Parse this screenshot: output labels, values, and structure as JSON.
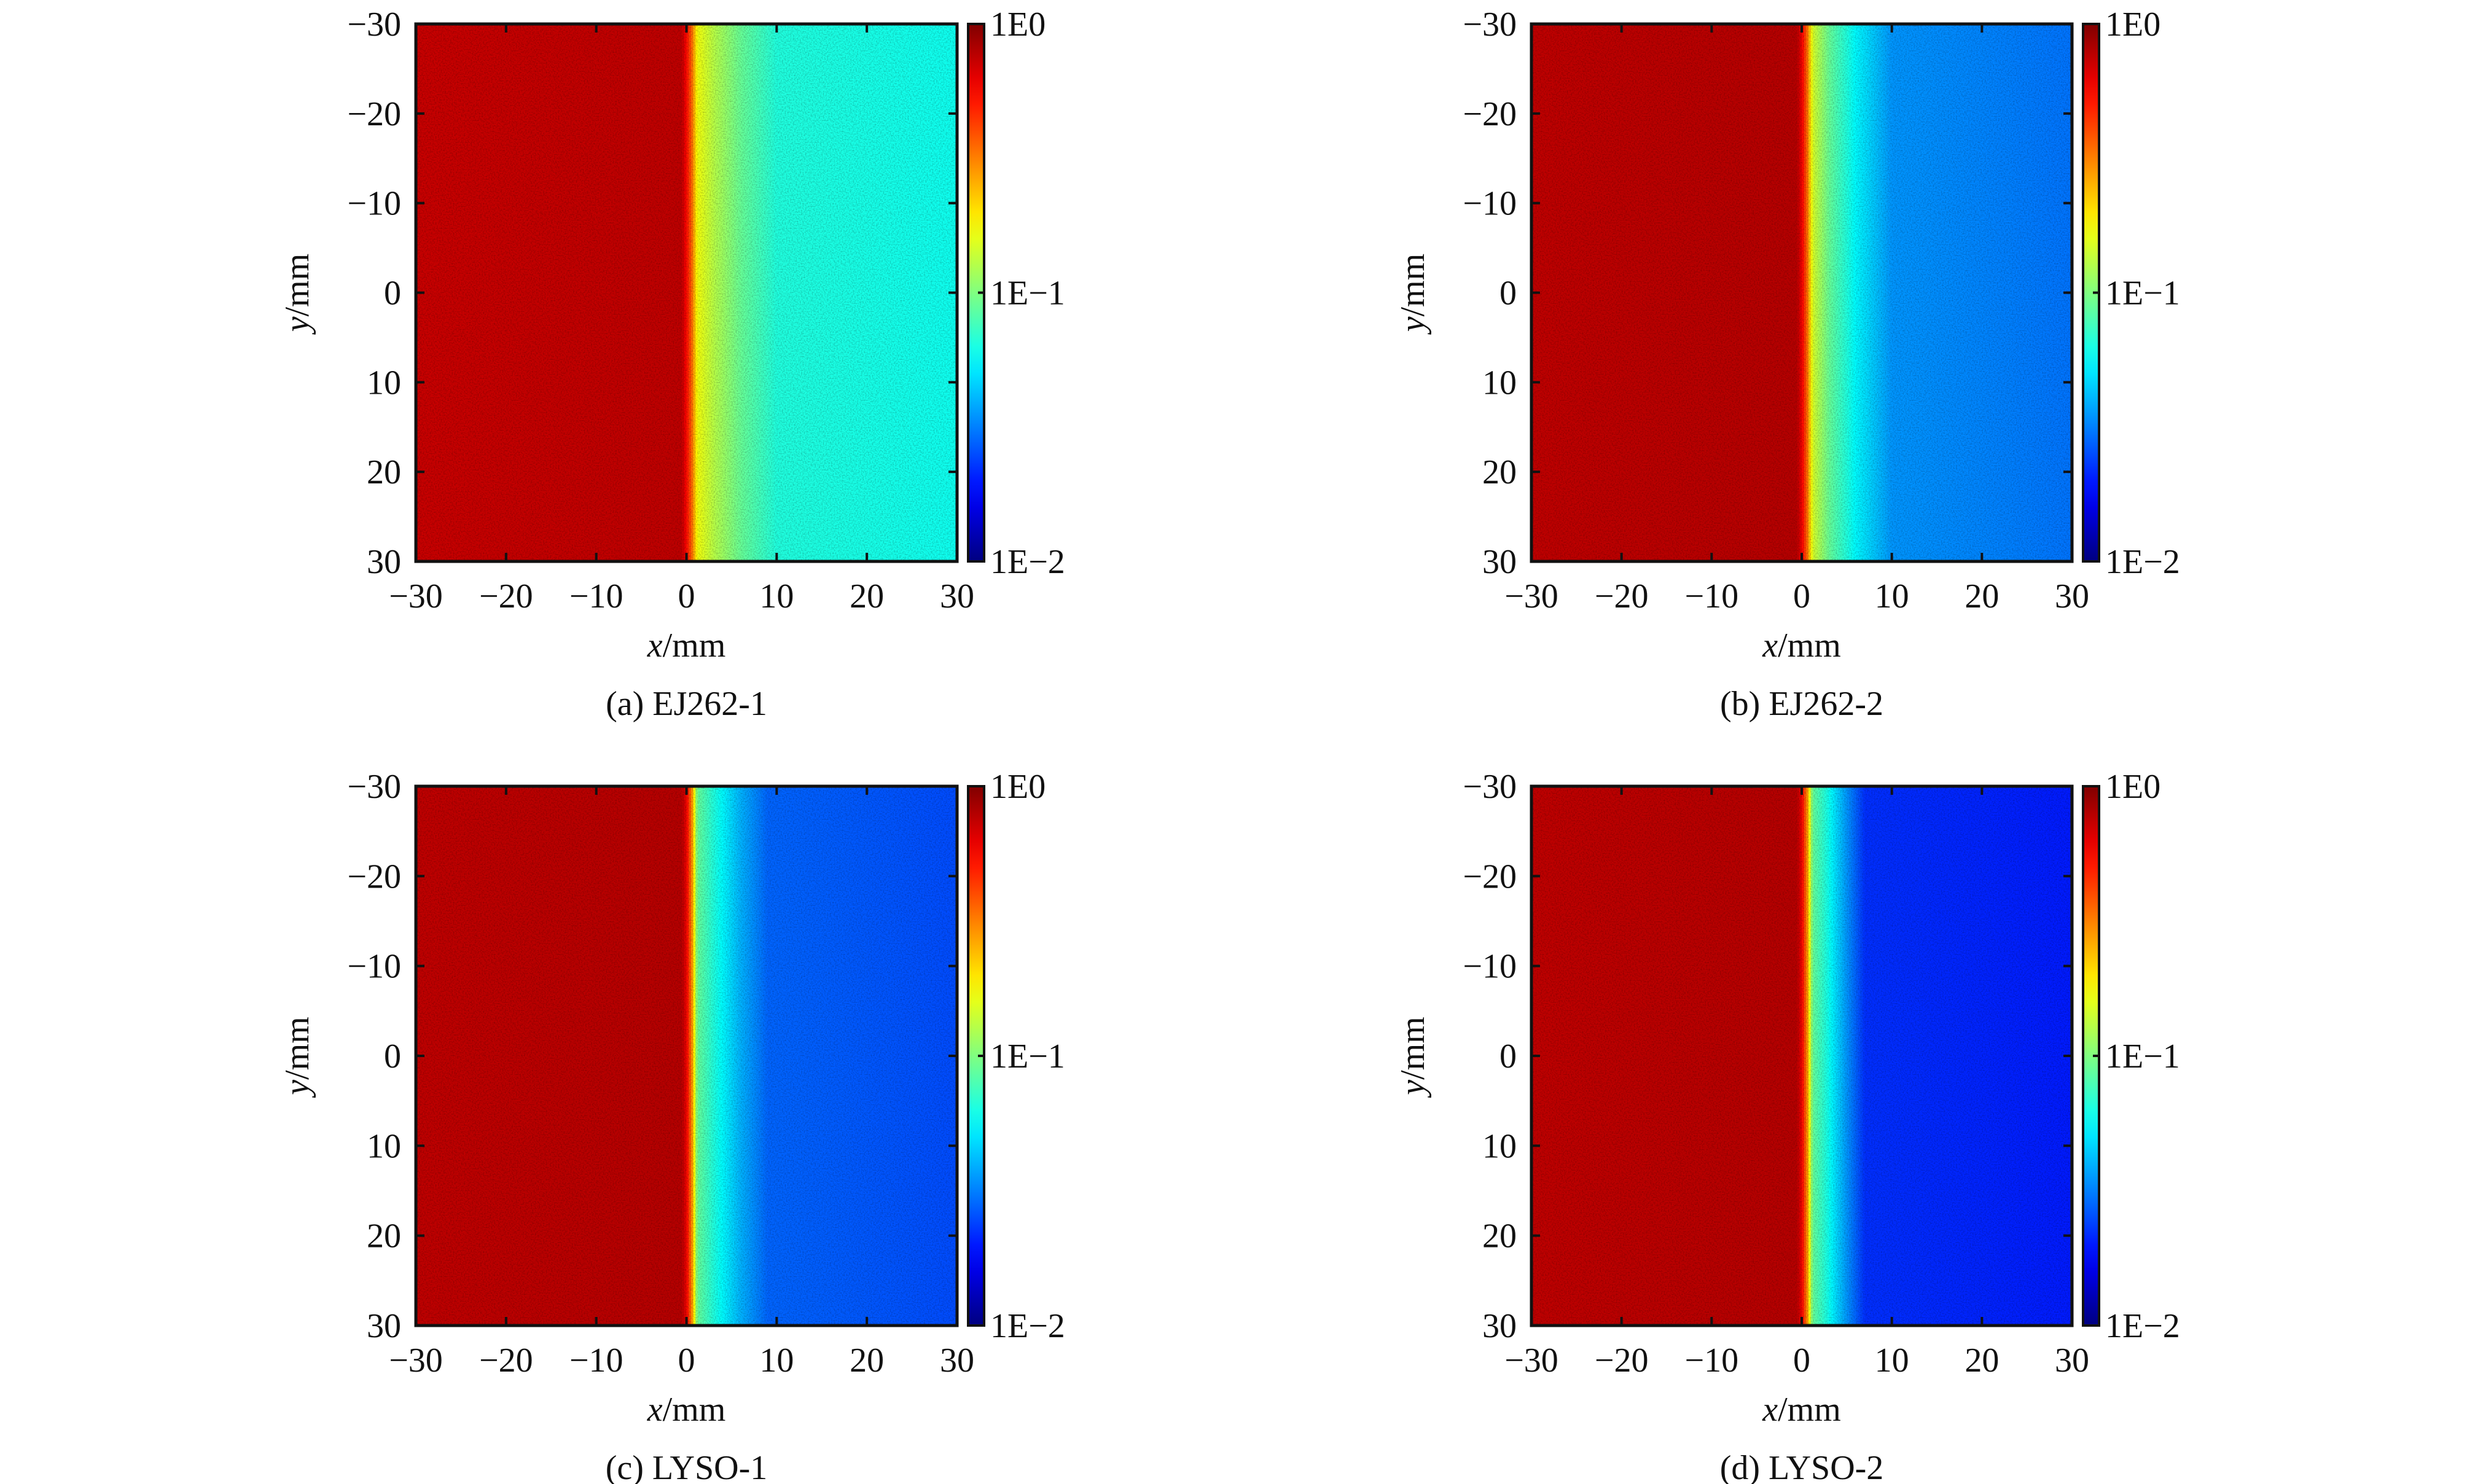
{
  "chart_data": [
    {
      "type": "heatmap",
      "caption": "(a) EJ262-1",
      "xlabel_var": "x",
      "xlabel_unit": "/mm",
      "ylabel_var": "y",
      "ylabel_unit": "/mm",
      "xlim": [
        -30,
        30
      ],
      "ylim": [
        -30,
        30
      ],
      "xticks": [
        "−30",
        "−20",
        "−10",
        "0",
        "10",
        "20",
        "30"
      ],
      "yticks": [
        "−30",
        "−20",
        "−10",
        "0",
        "10",
        "20",
        "30"
      ],
      "colorbar": {
        "scale": "log",
        "range": [
          0.01,
          1
        ],
        "ticks": [
          "1E0",
          "1E−1",
          "1E−2"
        ]
      },
      "profile": {
        "x": [
          -30,
          -0.5,
          0,
          0.6,
          1.2,
          3,
          6,
          10,
          30
        ],
        "value": [
          0.72,
          0.75,
          0.55,
          0.35,
          0.17,
          0.13,
          0.09,
          0.065,
          0.06
        ]
      }
    },
    {
      "type": "heatmap",
      "caption": "(b) EJ262-2",
      "xlabel_var": "x",
      "xlabel_unit": "/mm",
      "ylabel_var": "y",
      "ylabel_unit": "/mm",
      "xlim": [
        -30,
        30
      ],
      "ylim": [
        -30,
        30
      ],
      "xticks": [
        "−30",
        "−20",
        "−10",
        "0",
        "10",
        "20",
        "30"
      ],
      "yticks": [
        "−30",
        "−20",
        "−10",
        "0",
        "10",
        "20",
        "30"
      ],
      "colorbar": {
        "scale": "log",
        "range": [
          0.01,
          1
        ],
        "ticks": [
          "1E0",
          "1E−1",
          "1E−2"
        ]
      },
      "profile": {
        "x": [
          -30,
          -0.5,
          0,
          0.6,
          1.2,
          3,
          6,
          10,
          30
        ],
        "value": [
          0.75,
          0.78,
          0.6,
          0.35,
          0.15,
          0.09,
          0.055,
          0.035,
          0.03
        ]
      }
    },
    {
      "type": "heatmap",
      "caption": "(c) LYSO-1",
      "xlabel_var": "x",
      "xlabel_unit": "/mm",
      "ylabel_var": "y",
      "ylabel_unit": "/mm",
      "xlim": [
        -30,
        30
      ],
      "ylim": [
        -30,
        30
      ],
      "xticks": [
        "−30",
        "−20",
        "−10",
        "0",
        "10",
        "20",
        "30"
      ],
      "yticks": [
        "−30",
        "−20",
        "−10",
        "0",
        "10",
        "20",
        "30"
      ],
      "colorbar": {
        "scale": "log",
        "range": [
          0.01,
          1
        ],
        "ticks": [
          "1E0",
          "1E−1",
          "1E−2"
        ]
      },
      "profile": {
        "x": [
          -30,
          -0.5,
          0,
          0.6,
          1.2,
          3,
          6,
          9,
          30
        ],
        "value": [
          0.75,
          0.78,
          0.6,
          0.3,
          0.09,
          0.065,
          0.04,
          0.028,
          0.025
        ]
      }
    },
    {
      "type": "heatmap",
      "caption": "(d) LYSO-2",
      "xlabel_var": "x",
      "xlabel_unit": "/mm",
      "ylabel_var": "y",
      "ylabel_unit": "/mm",
      "xlim": [
        -30,
        30
      ],
      "ylim": [
        -30,
        30
      ],
      "xticks": [
        "−30",
        "−20",
        "−10",
        "0",
        "10",
        "20",
        "30"
      ],
      "yticks": [
        "−30",
        "−20",
        "−10",
        "0",
        "10",
        "20",
        "30"
      ],
      "colorbar": {
        "scale": "log",
        "range": [
          0.01,
          1
        ],
        "ticks": [
          "1E0",
          "1E−1",
          "1E−2"
        ]
      },
      "profile": {
        "x": [
          -30,
          -0.5,
          0,
          0.6,
          1.2,
          3,
          5,
          7,
          30
        ],
        "value": [
          0.75,
          0.78,
          0.6,
          0.3,
          0.09,
          0.06,
          0.035,
          0.022,
          0.02
        ]
      }
    }
  ]
}
